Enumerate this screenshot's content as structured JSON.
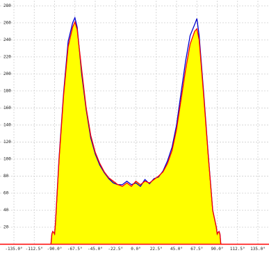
{
  "chart_data": {
    "type": "area",
    "x": [
      -94,
      -93,
      -92,
      -91,
      -90,
      -89,
      -85,
      -80,
      -75,
      -70,
      -67.5,
      -65,
      -60,
      -55,
      -50,
      -45,
      -40,
      -35,
      -30,
      -25,
      -20,
      -15,
      -10,
      -5,
      0,
      5,
      10,
      15,
      20,
      25,
      30,
      35,
      40,
      45,
      50,
      55,
      60,
      65,
      67.5,
      70,
      75,
      80,
      85,
      89,
      90,
      91,
      92,
      93,
      94
    ],
    "series": [
      {
        "color": "#ff0000",
        "fill": "#ffff00",
        "values": [
          0,
          12,
          15,
          14,
          12,
          25,
          100,
          175,
          232,
          255,
          261,
          252,
          205,
          160,
          128,
          108,
          95,
          85,
          78,
          74,
          70,
          68,
          72,
          68,
          74,
          70,
          74,
          72,
          76,
          80,
          85,
          95,
          110,
          135,
          170,
          205,
          235,
          250,
          253,
          240,
          175,
          105,
          40,
          20,
          12,
          14,
          15,
          12,
          0
        ]
      },
      {
        "color": "#0000cc",
        "values": [
          0,
          12,
          15,
          14,
          12,
          25,
          102,
          178,
          238,
          260,
          266,
          255,
          200,
          158,
          125,
          106,
          93,
          84,
          77,
          72,
          70,
          70,
          74,
          70,
          72,
          68,
          76,
          71,
          77,
          79,
          86,
          98,
          114,
          140,
          178,
          215,
          245,
          258,
          265,
          245,
          178,
          106,
          40,
          20,
          12,
          14,
          15,
          12,
          0
        ]
      }
    ],
    "xlim": [
      -150.4,
      147.3
    ],
    "ylim": [
      0,
      286
    ],
    "xticks": [
      {
        "value": -135,
        "label": "-135.0°"
      },
      {
        "value": -112.5,
        "label": "-112.5°"
      },
      {
        "value": -90,
        "label": "-90.0°"
      },
      {
        "value": -67.5,
        "label": "-67.5°"
      },
      {
        "value": -45,
        "label": "-45.0°"
      },
      {
        "value": -22.5,
        "label": "-22.5°"
      },
      {
        "value": 0,
        "label": "0.0°"
      },
      {
        "value": 22.5,
        "label": "22.5°"
      },
      {
        "value": 45,
        "label": "45.0°"
      },
      {
        "value": 67.5,
        "label": "67.5°"
      },
      {
        "value": 90,
        "label": "90.0°"
      },
      {
        "value": 112.5,
        "label": "112.5°"
      },
      {
        "value": 135,
        "label": "135.0°"
      }
    ],
    "yticks": [
      20,
      40,
      60,
      80,
      100,
      120,
      140,
      160,
      180,
      200,
      220,
      240,
      260,
      280
    ],
    "grid": true
  }
}
